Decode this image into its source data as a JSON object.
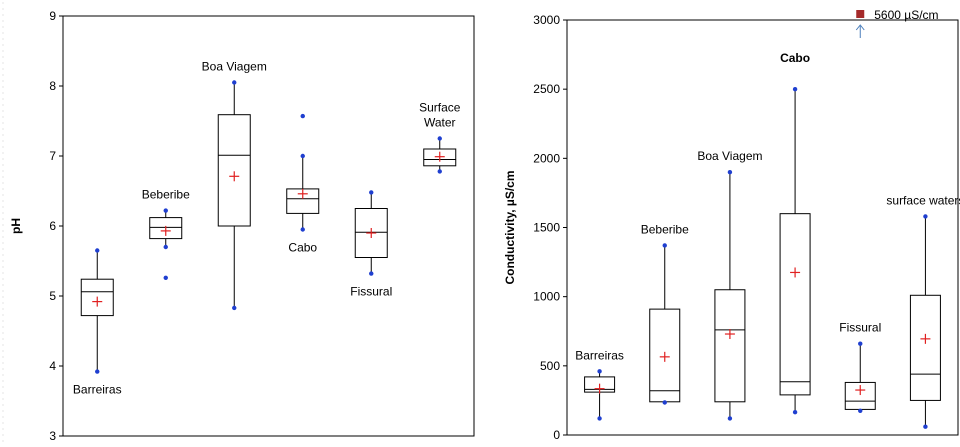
{
  "chart_data": [
    {
      "type": "box",
      "ylabel": "pH",
      "ylim": [
        3,
        9
      ],
      "yticks": [
        3,
        4,
        5,
        6,
        7,
        8,
        9
      ],
      "grid": false,
      "colors": {
        "box": "#000000",
        "whisker_point": "#1f3fd0",
        "mean": "#e02020"
      },
      "groups": [
        {
          "label": [
            "Barreiras"
          ],
          "label_position": "below",
          "min": 3.92,
          "q1": 4.72,
          "median": 5.06,
          "q3": 5.24,
          "max": 5.65,
          "mean": 4.92
        },
        {
          "label": [
            "Beberibe"
          ],
          "label_position": "above",
          "min": 5.7,
          "q1": 5.82,
          "median": 5.98,
          "q3": 6.12,
          "max": 6.22,
          "mean": 5.93,
          "outliers": [
            5.26
          ]
        },
        {
          "label": [
            "Boa Viagem"
          ],
          "label_position": "above",
          "min": 4.83,
          "q1": 6.0,
          "median": 7.01,
          "q3": 7.59,
          "max": 8.05,
          "mean": 6.71
        },
        {
          "label": [
            "Cabo"
          ],
          "label_position": "below",
          "min": 5.95,
          "q1": 6.18,
          "median": 6.39,
          "q3": 6.53,
          "max": 7.0,
          "mean": 6.46,
          "outliers": [
            7.57
          ]
        },
        {
          "label": [
            "Fissural"
          ],
          "label_position": "below",
          "min": 5.32,
          "q1": 5.55,
          "median": 5.91,
          "q3": 6.25,
          "max": 6.48,
          "mean": 5.9
        },
        {
          "label": [
            "Surface",
            "Water"
          ],
          "label_position": "above",
          "min": 6.78,
          "q1": 6.86,
          "median": 6.95,
          "q3": 7.1,
          "max": 7.25,
          "mean": 6.99
        }
      ]
    },
    {
      "type": "box",
      "ylabel": "Conductivity, µS/cm",
      "ylim": [
        0,
        3000
      ],
      "yticks": [
        0,
        500,
        1000,
        1500,
        2000,
        2500,
        3000
      ],
      "grid": false,
      "colors": {
        "box": "#000000",
        "whisker_point": "#1f3fd0",
        "mean": "#e02020",
        "extreme": "#a52a2a",
        "arrow": "#4a7ebb"
      },
      "extreme_point": {
        "group": 4,
        "text": "5600 µS/cm"
      },
      "groups": [
        {
          "label": [
            "Barreiras"
          ],
          "label_position": "above",
          "min": 120,
          "q1": 310,
          "median": 330,
          "q3": 420,
          "max": 460,
          "mean": 335
        },
        {
          "label": [
            "Beberibe"
          ],
          "label_position": "above",
          "min": 235,
          "q1": 240,
          "median": 320,
          "q3": 910,
          "max": 1370,
          "mean": 565
        },
        {
          "label": [
            "Boa Viagem"
          ],
          "label_position": "above",
          "min": 120,
          "q1": 240,
          "median": 760,
          "q3": 1050,
          "max": 1900,
          "mean": 730
        },
        {
          "label": [
            "Cabo"
          ],
          "label_position": "extreme",
          "min": 165,
          "q1": 290,
          "median": 385,
          "q3": 1600,
          "max": 2500,
          "mean": 1175
        },
        {
          "label": [
            "Fissural"
          ],
          "label_position": "above",
          "min": 175,
          "q1": 185,
          "median": 245,
          "q3": 380,
          "max": 660,
          "mean": 325
        },
        {
          "label": [
            "surface waters"
          ],
          "label_position": "above",
          "min": 60,
          "q1": 250,
          "median": 440,
          "q3": 1010,
          "max": 1580,
          "mean": 695
        }
      ]
    }
  ]
}
